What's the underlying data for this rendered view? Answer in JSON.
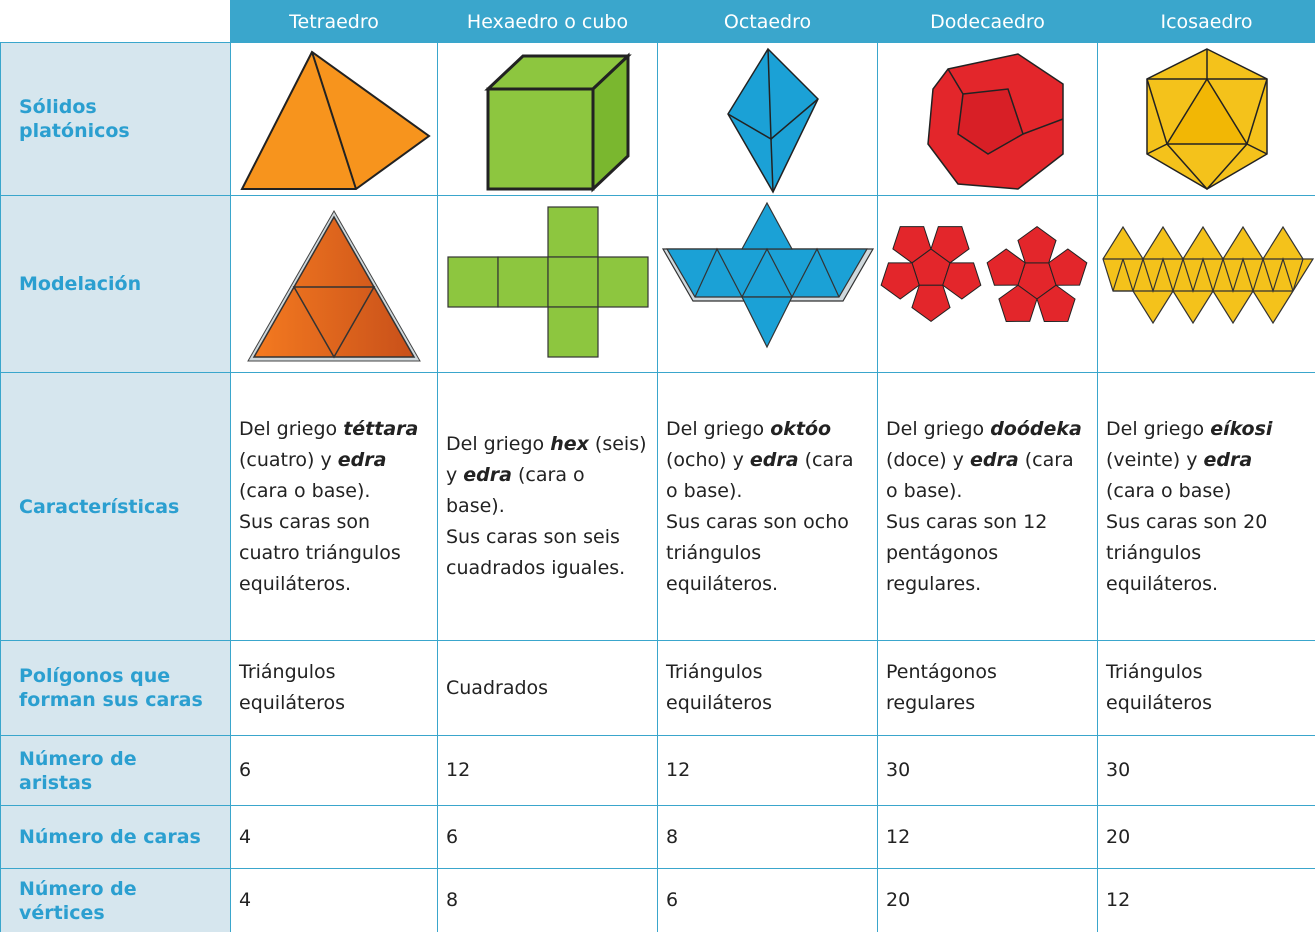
{
  "table": {
    "columns": [
      "Tetraedro",
      "Hexaedro o cubo",
      "Octaedro",
      "Dodecaedro",
      "Icosaedro"
    ],
    "rows": [
      {
        "label": [
          "Sólidos",
          "platónicos"
        ]
      },
      {
        "label": [
          "Modelación"
        ]
      },
      {
        "label": [
          "Características"
        ],
        "cells": [
          {
            "origin": [
              "Del griego ",
              "téttara",
              " (cuatro) y ",
              "edra",
              " (cara o base)."
            ],
            "faces": "Sus caras son cuatro triángulos equiláteros."
          },
          {
            "origin": [
              "Del griego ",
              "hex",
              " (seis) y ",
              "edra",
              " (cara o base)."
            ],
            "faces": "Sus caras son seis cuadrados iguales."
          },
          {
            "origin": [
              "Del griego ",
              "októo",
              " (ocho) y ",
              "edra",
              " (cara o base)."
            ],
            "faces": "Sus caras son ocho triángulos equiláteros."
          },
          {
            "origin": [
              "Del griego ",
              "doódeka",
              " (doce) y ",
              "edra",
              " (cara o base)."
            ],
            "faces": "Sus caras son 12 pentágonos regulares."
          },
          {
            "origin": [
              "Del griego ",
              "eíkosi",
              " (veinte) y ",
              "edra",
              " (cara o base)"
            ],
            "faces": "Sus caras son 20 triángulos equiláteros."
          }
        ]
      },
      {
        "label": [
          "Polígonos que",
          "forman sus caras"
        ],
        "cells": [
          "Triángulos equiláteros",
          "Cuadrados",
          "Triángulos equiláteros",
          "Pentágonos regulares",
          "Triángulos equiláteros"
        ]
      },
      {
        "label": [
          "Número de",
          "aristas"
        ],
        "cells": [
          "6",
          "12",
          "12",
          "30",
          "30"
        ]
      },
      {
        "label": [
          "Número de caras"
        ],
        "cells": [
          "4",
          "6",
          "8",
          "12",
          "20"
        ]
      },
      {
        "label": [
          "Número de",
          "vértices"
        ],
        "cells": [
          "4",
          "8",
          "6",
          "20",
          "12"
        ]
      }
    ]
  }
}
